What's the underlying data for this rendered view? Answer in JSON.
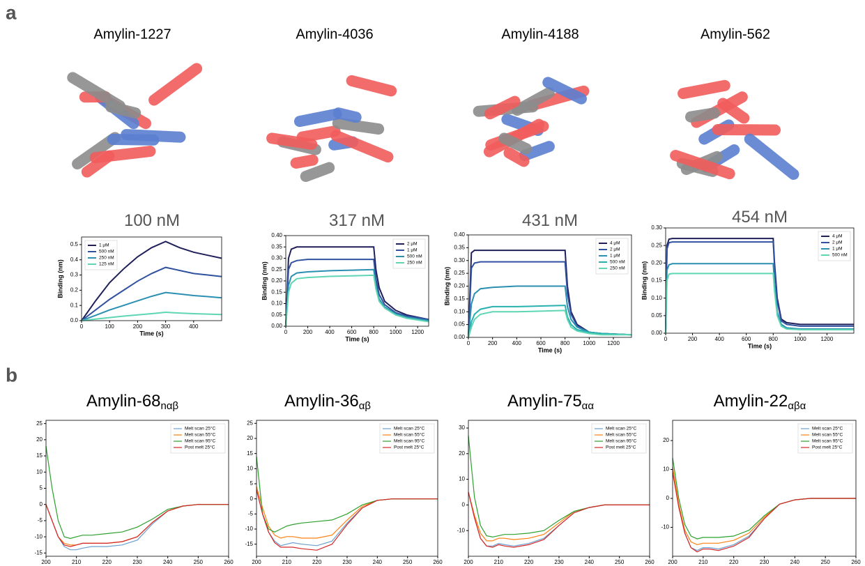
{
  "panel_labels": [
    "a",
    "b"
  ],
  "structures": [
    "Amylin-1227",
    "Amylin-4036",
    "Amylin-4188",
    "Amylin-562"
  ],
  "chart_data": [
    {
      "type": "line",
      "title": "100 nM",
      "x_label": "Time (s)",
      "y_label": "Binding (nm)",
      "legend": "upper left",
      "xlim": [
        0,
        500
      ],
      "ylim": [
        0,
        0.55
      ],
      "xticks": [
        0,
        100,
        200,
        300,
        400
      ],
      "yticks": [
        {
          "value": 0,
          "label": "0.0"
        },
        0.1,
        0.2,
        0.3,
        0.4,
        0.5
      ],
      "x": [
        0,
        50,
        100,
        150,
        200,
        250,
        300,
        350,
        400,
        450,
        500
      ],
      "series": [
        {
          "name": "1 μM",
          "color": "#1f1f5a",
          "values": [
            0,
            0.13,
            0.25,
            0.34,
            0.42,
            0.48,
            0.52,
            0.48,
            0.45,
            0.43,
            0.41
          ]
        },
        {
          "name": "500 nM",
          "color": "#3050a0",
          "values": [
            0,
            0.07,
            0.14,
            0.2,
            0.26,
            0.31,
            0.35,
            0.33,
            0.31,
            0.3,
            0.29
          ]
        },
        {
          "name": "250 nM",
          "color": "#2a8fb0",
          "values": [
            0,
            0.035,
            0.07,
            0.1,
            0.13,
            0.16,
            0.185,
            0.175,
            0.165,
            0.158,
            0.15
          ]
        },
        {
          "name": "125 nM",
          "color": "#5ed6b4",
          "values": [
            0,
            0.01,
            0.02,
            0.03,
            0.038,
            0.046,
            0.055,
            0.05,
            0.046,
            0.043,
            0.04
          ]
        }
      ]
    },
    {
      "type": "line",
      "title": "317 nM",
      "x_label": "Time (s)",
      "y_label": "Binding (nm)",
      "legend": "upper right",
      "xlim": [
        0,
        1300
      ],
      "ylim": [
        0,
        0.4
      ],
      "xticks": [
        0,
        200,
        400,
        600,
        800,
        1000,
        1200
      ],
      "yticks": [
        {
          "value": 0,
          "label": "0.00"
        },
        0.05,
        {
          "value": 0.1,
          "label": "0.10"
        },
        0.15,
        {
          "value": 0.2,
          "label": "0.20"
        },
        0.25,
        {
          "value": 0.3,
          "label": "0.30"
        },
        0.35,
        {
          "value": 0.4,
          "label": "0.40"
        }
      ],
      "x": [
        0,
        25,
        50,
        100,
        200,
        400,
        800,
        820,
        850,
        900,
        1000,
        1100,
        1300
      ],
      "series": [
        {
          "name": "2 μM",
          "color": "#1f1f5a",
          "values": [
            0,
            0.3,
            0.34,
            0.35,
            0.35,
            0.35,
            0.35,
            0.25,
            0.17,
            0.11,
            0.07,
            0.05,
            0.03
          ]
        },
        {
          "name": "1 μM",
          "color": "#3050a0",
          "values": [
            0,
            0.25,
            0.28,
            0.29,
            0.295,
            0.295,
            0.295,
            0.21,
            0.14,
            0.095,
            0.06,
            0.045,
            0.03
          ]
        },
        {
          "name": "500 nM",
          "color": "#2a8fb0",
          "values": [
            0,
            0.18,
            0.22,
            0.235,
            0.24,
            0.245,
            0.25,
            0.18,
            0.12,
            0.085,
            0.055,
            0.04,
            0.025
          ]
        },
        {
          "name": "250 nM",
          "color": "#5ed6b4",
          "values": [
            0,
            0.15,
            0.19,
            0.21,
            0.215,
            0.22,
            0.225,
            0.165,
            0.11,
            0.08,
            0.05,
            0.035,
            0.02
          ]
        }
      ]
    },
    {
      "type": "line",
      "title": "431 nM",
      "x_label": "Time (s)",
      "y_label": "Binding (nm)",
      "legend": "upper right",
      "xlim": [
        0,
        1350
      ],
      "ylim": [
        0,
        0.4
      ],
      "xticks": [
        0,
        200,
        400,
        600,
        800,
        1000,
        1200
      ],
      "yticks": [
        {
          "value": 0,
          "label": "0.00"
        },
        0.05,
        {
          "value": 0.1,
          "label": "0.10"
        },
        0.15,
        {
          "value": 0.2,
          "label": "0.20"
        },
        0.25,
        {
          "value": 0.3,
          "label": "0.30"
        },
        0.35,
        {
          "value": 0.4,
          "label": "0.40"
        }
      ],
      "x": [
        0,
        25,
        50,
        100,
        200,
        400,
        800,
        820,
        850,
        900,
        1000,
        1100,
        1350
      ],
      "series": [
        {
          "name": "4 μM",
          "color": "#1f1f5a",
          "values": [
            0,
            0.33,
            0.34,
            0.34,
            0.34,
            0.34,
            0.34,
            0.2,
            0.1,
            0.05,
            0.02,
            0.015,
            0.01
          ]
        },
        {
          "name": "2 μM",
          "color": "#3050a0",
          "values": [
            0,
            0.27,
            0.29,
            0.295,
            0.295,
            0.295,
            0.295,
            0.17,
            0.09,
            0.045,
            0.02,
            0.015,
            0.01
          ]
        },
        {
          "name": "1 μM",
          "color": "#2a8fb0",
          "values": [
            0,
            0.13,
            0.17,
            0.19,
            0.195,
            0.2,
            0.2,
            0.12,
            0.07,
            0.04,
            0.02,
            0.015,
            0.01
          ]
        },
        {
          "name": "500 nM",
          "color": "#27b0b0",
          "values": [
            0,
            0.06,
            0.09,
            0.11,
            0.12,
            0.12,
            0.125,
            0.08,
            0.05,
            0.03,
            0.02,
            0.015,
            0.01
          ]
        },
        {
          "name": "250 nM",
          "color": "#5ed6b4",
          "values": [
            0,
            0.04,
            0.07,
            0.09,
            0.1,
            0.1,
            0.105,
            0.07,
            0.04,
            0.025,
            0.015,
            0.01,
            0.01
          ]
        }
      ]
    },
    {
      "type": "line",
      "title": "454 nM",
      "x_label": "Time (s)",
      "y_label": "Binding (nm)",
      "legend": "upper right",
      "xlim": [
        0,
        1400
      ],
      "ylim": [
        0,
        0.3
      ],
      "xticks": [
        0,
        200,
        400,
        600,
        800,
        1000,
        1200
      ],
      "yticks": [
        {
          "value": 0,
          "label": "0.00"
        },
        0.05,
        {
          "value": 0.1,
          "label": "0.10"
        },
        0.15,
        {
          "value": 0.2,
          "label": "0.20"
        },
        0.25,
        {
          "value": 0.3,
          "label": "0.30"
        }
      ],
      "x": [
        0,
        10,
        25,
        50,
        100,
        400,
        800,
        810,
        830,
        860,
        900,
        1000,
        1200,
        1400
      ],
      "series": [
        {
          "name": "4 μM",
          "color": "#1f1f5a",
          "values": [
            0,
            0.25,
            0.268,
            0.27,
            0.27,
            0.27,
            0.27,
            0.2,
            0.1,
            0.04,
            0.03,
            0.025,
            0.025,
            0.025
          ]
        },
        {
          "name": "2 μM",
          "color": "#3050a0",
          "values": [
            0,
            0.24,
            0.258,
            0.26,
            0.26,
            0.26,
            0.26,
            0.19,
            0.09,
            0.035,
            0.025,
            0.02,
            0.02,
            0.02
          ]
        },
        {
          "name": "1 μM",
          "color": "#2a8fb0",
          "values": [
            0,
            0.18,
            0.195,
            0.198,
            0.198,
            0.198,
            0.198,
            0.14,
            0.06,
            0.025,
            0.015,
            0.012,
            0.012,
            0.012
          ]
        },
        {
          "name": "500 nM",
          "color": "#5ed6b4",
          "values": [
            0,
            0.15,
            0.168,
            0.17,
            0.17,
            0.17,
            0.17,
            0.12,
            0.05,
            0.02,
            0.012,
            0.01,
            0.01,
            0.01
          ]
        }
      ]
    },
    {
      "type": "line",
      "title": "Amylin-68",
      "title_subscript": "nαβ",
      "legend": "upper right",
      "xlim": [
        200,
        260
      ],
      "ylim": [
        -16,
        26
      ],
      "xticks": [
        200,
        210,
        220,
        230,
        240,
        250,
        260
      ],
      "yticks": [
        -15,
        -10,
        -5,
        0,
        5,
        10,
        15,
        20,
        25
      ],
      "x": [
        200,
        202,
        204,
        206,
        208,
        210,
        212,
        215,
        220,
        225,
        230,
        235,
        240,
        245,
        250,
        255,
        260
      ],
      "series": [
        {
          "name": "Melt scan 25°C",
          "color": "#6a9fcf",
          "values": [
            0,
            -5,
            -10,
            -13,
            -14,
            -14,
            -13.5,
            -13,
            -13,
            -12.5,
            -11,
            -6,
            -2,
            -0.5,
            0,
            0,
            0
          ]
        },
        {
          "name": "Melt scan 55°C",
          "color": "#ff7f0e",
          "values": [
            0,
            -5,
            -10,
            -12,
            -12.5,
            -12.5,
            -12,
            -12,
            -12,
            -11.5,
            -10,
            -5.5,
            -2,
            -0.5,
            0,
            0,
            0
          ]
        },
        {
          "name": "Melt scan 95°C",
          "color": "#2ca02c",
          "values": [
            18,
            5,
            -5,
            -10,
            -10.5,
            -10,
            -9.5,
            -9.5,
            -9,
            -8.5,
            -7,
            -4.5,
            -1.5,
            -0.5,
            0,
            0,
            0
          ]
        },
        {
          "name": "Post melt 25°C",
          "color": "#d62728",
          "values": [
            0,
            -5,
            -10,
            -12.5,
            -13,
            -12.5,
            -12,
            -12,
            -12,
            -11.5,
            -10,
            -5.5,
            -2,
            -0.5,
            0,
            0,
            0
          ]
        }
      ]
    },
    {
      "type": "line",
      "title": "Amylin-36",
      "title_subscript": "αβ",
      "legend": "upper right",
      "xlim": [
        200,
        260
      ],
      "ylim": [
        -19,
        26
      ],
      "xticks": [
        200,
        210,
        220,
        230,
        240,
        250,
        260
      ],
      "yticks": [
        -15,
        -10,
        -5,
        0,
        5,
        10,
        15,
        20,
        25
      ],
      "x": [
        200,
        202,
        204,
        206,
        208,
        210,
        212,
        215,
        220,
        225,
        230,
        235,
        240,
        245,
        250,
        255,
        260
      ],
      "series": [
        {
          "name": "Melt scan 25°C",
          "color": "#6a9fcf",
          "values": [
            3,
            -5,
            -11,
            -14,
            -15.5,
            -15,
            -14.5,
            -15,
            -15.5,
            -14,
            -8,
            -3,
            -0.5,
            0,
            0,
            0,
            0
          ]
        },
        {
          "name": "Melt scan 55°C",
          "color": "#ff7f0e",
          "values": [
            4,
            -3,
            -9,
            -12,
            -13,
            -12.5,
            -12.5,
            -13,
            -13,
            -12,
            -7,
            -2.5,
            -0.5,
            0,
            0,
            0,
            0
          ]
        },
        {
          "name": "Melt scan 95°C",
          "color": "#2ca02c",
          "values": [
            14,
            -5,
            -10,
            -11,
            -10,
            -9,
            -8.5,
            -8,
            -7.5,
            -7,
            -5,
            -2,
            -0.5,
            0,
            0,
            0,
            0
          ]
        },
        {
          "name": "Post melt 25°C",
          "color": "#d62728",
          "values": [
            3,
            -5,
            -11,
            -14.5,
            -16,
            -16,
            -16,
            -16.5,
            -17,
            -15,
            -8.5,
            -3,
            -0.5,
            0,
            0,
            0,
            0
          ]
        }
      ]
    },
    {
      "type": "line",
      "title": "Amylin-75",
      "title_subscript": "αα",
      "legend": "upper right",
      "xlim": [
        200,
        260
      ],
      "ylim": [
        -20,
        33
      ],
      "xticks": [
        200,
        210,
        220,
        230,
        240,
        250,
        260
      ],
      "yticks": [
        -10,
        0,
        10,
        20,
        30
      ],
      "x": [
        200,
        202,
        204,
        206,
        208,
        210,
        212,
        215,
        220,
        225,
        230,
        235,
        240,
        245,
        250,
        255,
        260
      ],
      "series": [
        {
          "name": "Melt scan 25°C",
          "color": "#6a9fcf",
          "values": [
            5,
            -5,
            -13,
            -16,
            -16,
            -15,
            -15.5,
            -16,
            -15,
            -13,
            -8,
            -3,
            -1,
            0,
            0,
            0,
            0
          ]
        },
        {
          "name": "Melt scan 55°C",
          "color": "#ff7f0e",
          "values": [
            5,
            -4,
            -11,
            -14,
            -14,
            -13,
            -13,
            -13.5,
            -13,
            -11.5,
            -7,
            -2.5,
            -1,
            0,
            0,
            0,
            0
          ]
        },
        {
          "name": "Melt scan 95°C",
          "color": "#2ca02c",
          "values": [
            27,
            3,
            -8,
            -12,
            -12.5,
            -12,
            -11.5,
            -11.5,
            -11,
            -10,
            -6,
            -2.5,
            -1,
            0,
            0,
            0,
            0
          ]
        },
        {
          "name": "Post melt 25°C",
          "color": "#d62728",
          "values": [
            5,
            -5,
            -13,
            -16,
            -16.5,
            -15.5,
            -16,
            -16.5,
            -15.5,
            -13.5,
            -8,
            -3,
            -1,
            0,
            0,
            0,
            0
          ]
        }
      ]
    },
    {
      "type": "line",
      "title": "Amylin-22",
      "title_subscript": "αβα",
      "legend": "upper right",
      "xlim": [
        200,
        260
      ],
      "ylim": [
        -20,
        27
      ],
      "xticks": [
        200,
        210,
        220,
        230,
        240,
        250,
        260
      ],
      "yticks": [
        -10,
        0,
        10,
        20
      ],
      "x": [
        200,
        202,
        204,
        206,
        208,
        210,
        212,
        215,
        220,
        225,
        230,
        235,
        240,
        245,
        250,
        255,
        260
      ],
      "series": [
        {
          "name": "Melt scan 25°C",
          "color": "#6a9fcf",
          "values": [
            10,
            -3,
            -12,
            -17,
            -18,
            -17,
            -17,
            -17.5,
            -16,
            -13,
            -7,
            -2,
            -0.5,
            0,
            0,
            0,
            0
          ]
        },
        {
          "name": "Melt scan 55°C",
          "color": "#ff7f0e",
          "values": [
            11,
            -2,
            -11,
            -15,
            -16,
            -15.5,
            -15.5,
            -15.5,
            -14.5,
            -12,
            -6.5,
            -2,
            -0.5,
            0,
            0,
            0,
            0
          ]
        },
        {
          "name": "Melt scan 95°C",
          "color": "#2ca02c",
          "values": [
            14,
            0,
            -9,
            -13,
            -14,
            -13.5,
            -13.5,
            -13.5,
            -13,
            -11,
            -6,
            -2,
            -0.5,
            0,
            0,
            0,
            0
          ]
        },
        {
          "name": "Post melt 25°C",
          "color": "#d62728",
          "values": [
            9,
            -3,
            -12,
            -17,
            -18.5,
            -17.5,
            -17.5,
            -18,
            -16.5,
            -13.5,
            -7,
            -2,
            -0.5,
            0,
            0,
            0,
            0
          ]
        }
      ]
    }
  ]
}
